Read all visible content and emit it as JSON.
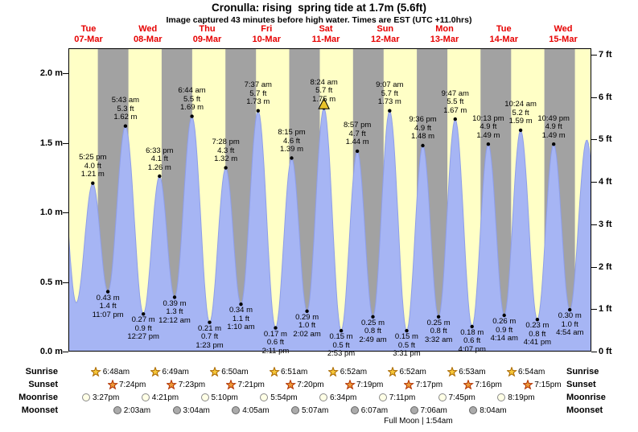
{
  "title": "Cronulla: rising  spring tide at 1.7m (5.6ft)",
  "subtitle": "Image captured 43 minutes before high water. Times are EST (UTC +11.0hrs)",
  "days": [
    {
      "name": "Tue",
      "date": "07-Mar"
    },
    {
      "name": "Wed",
      "date": "08-Mar"
    },
    {
      "name": "Thu",
      "date": "09-Mar"
    },
    {
      "name": "Fri",
      "date": "10-Mar"
    },
    {
      "name": "Sat",
      "date": "11-Mar"
    },
    {
      "name": "Sun",
      "date": "12-Mar"
    },
    {
      "name": "Mon",
      "date": "13-Mar"
    },
    {
      "name": "Tue",
      "date": "14-Mar"
    },
    {
      "name": "Wed",
      "date": "15-Mar"
    }
  ],
  "y_axis_left": [
    {
      "label": "2.0 m",
      "m": 2.0
    },
    {
      "label": "1.5 m",
      "m": 1.5
    },
    {
      "label": "1.0 m",
      "m": 1.0
    },
    {
      "label": "0.5 m",
      "m": 0.5
    },
    {
      "label": "0.0 m",
      "m": 0.0
    }
  ],
  "y_axis_right": [
    {
      "label": "7 ft",
      "ft": 7
    },
    {
      "label": "6 ft",
      "ft": 6
    },
    {
      "label": "5 ft",
      "ft": 5
    },
    {
      "label": "4 ft",
      "ft": 4
    },
    {
      "label": "3 ft",
      "ft": 3
    },
    {
      "label": "2 ft",
      "ft": 2
    },
    {
      "label": "1 ft",
      "ft": 1
    },
    {
      "label": "0 ft",
      "ft": 0
    }
  ],
  "chart_data": {
    "type": "area",
    "series_name": "tide height",
    "units": {
      "primary": "m",
      "secondary": "ft"
    },
    "x_range_days": 9,
    "ylim_m": [
      0,
      2.18
    ],
    "extremes": [
      {
        "day": 0,
        "hours": 4.92,
        "type": "high",
        "m": 1.5,
        "labeled": false
      },
      {
        "day": 0,
        "hours": 11.2,
        "type": "low",
        "m": 0.35,
        "labeled": false
      },
      {
        "day": 0,
        "hours": 17.42,
        "type": "high",
        "m": 1.21,
        "labeled": true,
        "time": "5:25 pm",
        "ft": "4.0 ft",
        "meters": "1.21 m"
      },
      {
        "day": 0,
        "hours": 23.12,
        "type": "low",
        "m": 0.43,
        "labeled": true,
        "time": "11:07 pm",
        "ft": "1.4 ft",
        "meters": "0.43 m"
      },
      {
        "day": 1,
        "hours": 5.72,
        "type": "high",
        "m": 1.62,
        "labeled": true,
        "time": "5:43 am",
        "ft": "5.3 ft",
        "meters": "1.62 m"
      },
      {
        "day": 1,
        "hours": 12.45,
        "type": "low",
        "m": 0.27,
        "labeled": true,
        "time": "12:27 pm",
        "ft": "0.9 ft",
        "meters": "0.27 m"
      },
      {
        "day": 1,
        "hours": 18.55,
        "type": "high",
        "m": 1.26,
        "labeled": true,
        "time": "6:33 pm",
        "ft": "4.1 ft",
        "meters": "1.26 m"
      },
      {
        "day": 2,
        "hours": 0.2,
        "type": "low",
        "m": 0.39,
        "labeled": true,
        "time": "12:12 am",
        "ft": "1.3 ft",
        "meters": "0.39 m"
      },
      {
        "day": 2,
        "hours": 6.73,
        "type": "high",
        "m": 1.69,
        "labeled": true,
        "time": "6:44 am",
        "ft": "5.5 ft",
        "meters": "1.69 m"
      },
      {
        "day": 2,
        "hours": 13.38,
        "type": "low",
        "m": 0.21,
        "labeled": true,
        "time": "1:23 pm",
        "ft": "0.7 ft",
        "meters": "0.21 m"
      },
      {
        "day": 2,
        "hours": 19.47,
        "type": "high",
        "m": 1.32,
        "labeled": true,
        "time": "7:28 pm",
        "ft": "4.3 ft",
        "meters": "1.32 m"
      },
      {
        "day": 3,
        "hours": 1.17,
        "type": "low",
        "m": 0.34,
        "labeled": true,
        "time": "1:10 am",
        "ft": "1.1 ft",
        "meters": "0.34 m"
      },
      {
        "day": 3,
        "hours": 7.62,
        "type": "high",
        "m": 1.73,
        "labeled": true,
        "time": "7:37 am",
        "ft": "5.7 ft",
        "meters": "1.73 m"
      },
      {
        "day": 3,
        "hours": 14.18,
        "type": "low",
        "m": 0.17,
        "labeled": true,
        "time": "2:11 pm",
        "ft": "0.6 ft",
        "meters": "0.17 m"
      },
      {
        "day": 3,
        "hours": 20.25,
        "type": "high",
        "m": 1.39,
        "labeled": true,
        "time": "8:15 pm",
        "ft": "4.6 ft",
        "meters": "1.39 m"
      },
      {
        "day": 4,
        "hours": 2.03,
        "type": "low",
        "m": 0.29,
        "labeled": true,
        "time": "2:02 am",
        "ft": "1.0 ft",
        "meters": "0.29 m"
      },
      {
        "day": 4,
        "hours": 8.4,
        "type": "high",
        "m": 1.75,
        "labeled": true,
        "time": "8:24 am",
        "ft": "5.7 ft",
        "meters": "1.75 m",
        "marker": true
      },
      {
        "day": 4,
        "hours": 14.88,
        "type": "low",
        "m": 0.15,
        "labeled": true,
        "time": "2:53 pm",
        "ft": "0.5 ft",
        "meters": "0.15 m"
      },
      {
        "day": 4,
        "hours": 20.95,
        "type": "high",
        "m": 1.44,
        "labeled": true,
        "time": "8:57 pm",
        "ft": "4.7 ft",
        "meters": "1.44 m"
      },
      {
        "day": 5,
        "hours": 2.82,
        "type": "low",
        "m": 0.25,
        "labeled": true,
        "time": "2:49 am",
        "ft": "0.8 ft",
        "meters": "0.25 m"
      },
      {
        "day": 5,
        "hours": 9.12,
        "type": "high",
        "m": 1.73,
        "labeled": true,
        "time": "9:07 am",
        "ft": "5.7 ft",
        "meters": "1.73 m"
      },
      {
        "day": 5,
        "hours": 15.52,
        "type": "low",
        "m": 0.15,
        "labeled": true,
        "time": "3:31 pm",
        "ft": "0.5 ft",
        "meters": "0.15 m"
      },
      {
        "day": 5,
        "hours": 21.6,
        "type": "high",
        "m": 1.48,
        "labeled": true,
        "time": "9:36 pm",
        "ft": "4.9 ft",
        "meters": "1.48 m"
      },
      {
        "day": 6,
        "hours": 3.53,
        "type": "low",
        "m": 0.25,
        "labeled": true,
        "time": "3:32 am",
        "ft": "0.8 ft",
        "meters": "0.25 m"
      },
      {
        "day": 6,
        "hours": 9.78,
        "type": "high",
        "m": 1.67,
        "labeled": true,
        "time": "9:47 am",
        "ft": "5.5 ft",
        "meters": "1.67 m"
      },
      {
        "day": 6,
        "hours": 16.12,
        "type": "low",
        "m": 0.18,
        "labeled": true,
        "time": "4:07 pm",
        "ft": "0.6 ft",
        "meters": "0.18 m"
      },
      {
        "day": 6,
        "hours": 22.22,
        "type": "high",
        "m": 1.49,
        "labeled": true,
        "time": "10:13 pm",
        "ft": "4.9 ft",
        "meters": "1.49 m"
      },
      {
        "day": 7,
        "hours": 4.23,
        "type": "low",
        "m": 0.26,
        "labeled": true,
        "time": "4:14 am",
        "ft": "0.9 ft",
        "meters": "0.26 m"
      },
      {
        "day": 7,
        "hours": 10.4,
        "type": "high",
        "m": 1.59,
        "labeled": true,
        "time": "10:24 am",
        "ft": "5.2 ft",
        "meters": "1.59 m"
      },
      {
        "day": 7,
        "hours": 16.68,
        "type": "low",
        "m": 0.23,
        "labeled": true,
        "time": "4:41 pm",
        "ft": "0.8 ft",
        "meters": "0.23 m"
      },
      {
        "day": 7,
        "hours": 22.82,
        "type": "high",
        "m": 1.49,
        "labeled": true,
        "time": "10:49 pm",
        "ft": "4.9 ft",
        "meters": "1.49 m"
      },
      {
        "day": 8,
        "hours": 4.9,
        "type": "low",
        "m": 0.3,
        "labeled": true,
        "time": "4:54 am",
        "ft": "1.0 ft",
        "meters": "0.30 m"
      },
      {
        "day": 8,
        "hours": 11.3,
        "type": "high",
        "m": 1.52,
        "labeled": false
      },
      {
        "day": 8,
        "hours": 17.7,
        "type": "low",
        "m": 0.3,
        "labeled": false
      }
    ],
    "current_marker": {
      "on_extreme_time": "8:24 am",
      "note": "43 minutes before high water"
    }
  },
  "almanac": {
    "rows": [
      {
        "id": "sunrise",
        "label": "Sunrise",
        "icon": "sunrise-star",
        "entries": [
          {
            "day": 1,
            "time": "6:48am"
          },
          {
            "day": 2,
            "time": "6:49am"
          },
          {
            "day": 3,
            "time": "6:50am"
          },
          {
            "day": 4,
            "time": "6:51am"
          },
          {
            "day": 5,
            "time": "6:52am"
          },
          {
            "day": 6,
            "time": "6:52am"
          },
          {
            "day": 7,
            "time": "6:53am"
          },
          {
            "day": 8,
            "time": "6:54am"
          }
        ]
      },
      {
        "id": "sunset",
        "label": "Sunset",
        "icon": "sunset-star",
        "entries": [
          {
            "day": 0,
            "time": "7:24pm"
          },
          {
            "day": 1,
            "time": "7:23pm"
          },
          {
            "day": 2,
            "time": "7:21pm"
          },
          {
            "day": 3,
            "time": "7:20pm"
          },
          {
            "day": 4,
            "time": "7:19pm"
          },
          {
            "day": 5,
            "time": "7:17pm"
          },
          {
            "day": 6,
            "time": "7:16pm"
          },
          {
            "day": 7,
            "time": "7:15pm"
          }
        ]
      },
      {
        "id": "moonrise",
        "label": "Moonrise",
        "icon": "moonrise-circle",
        "entries": [
          {
            "day": 0,
            "time": "3:27pm"
          },
          {
            "day": 1,
            "time": "4:21pm"
          },
          {
            "day": 2,
            "time": "5:10pm"
          },
          {
            "day": 3,
            "time": "5:54pm"
          },
          {
            "day": 4,
            "time": "6:34pm"
          },
          {
            "day": 5,
            "time": "7:11pm"
          },
          {
            "day": 6,
            "time": "7:45pm"
          },
          {
            "day": 7,
            "time": "8:19pm"
          }
        ]
      },
      {
        "id": "moonset",
        "label": "Moonset",
        "icon": "moonset-circle",
        "entries": [
          {
            "day": 1,
            "time": "2:03am"
          },
          {
            "day": 2,
            "time": "3:04am"
          },
          {
            "day": 3,
            "time": "4:05am"
          },
          {
            "day": 4,
            "time": "5:07am"
          },
          {
            "day": 5,
            "time": "6:07am"
          },
          {
            "day": 6,
            "time": "7:06am"
          },
          {
            "day": 7,
            "time": "8:04am"
          }
        ]
      }
    ],
    "footer": "Full Moon | 1:54am"
  },
  "colors": {
    "day_band": "#ffffc6",
    "night_band": "#a2a2a2",
    "tide_fill": "#a6b5f4",
    "tide_stroke": "#8e9ee8",
    "date_red": "#e60000",
    "marker_yellow": "#e8c32a",
    "sunrise_star_fill": "#f6c73a",
    "sunrise_star_stroke": "#a96800",
    "sunset_star_fill": "#ed9a3a",
    "sunset_star_stroke": "#b03000",
    "moonrise_circle": "#ffffe6",
    "moonrise_border": "#888888",
    "moonset_circle": "#ababab",
    "moonset_border": "#666666"
  }
}
